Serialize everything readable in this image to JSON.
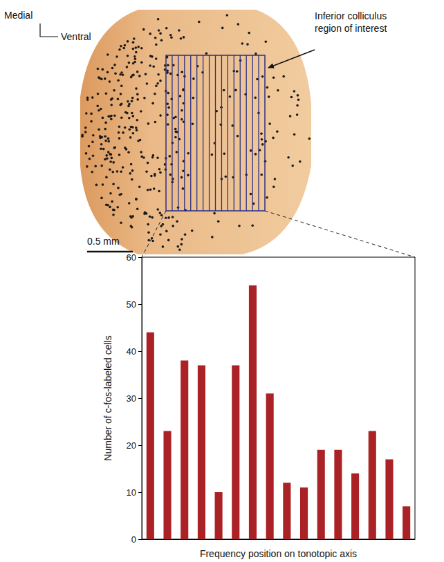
{
  "chart_data": {
    "type": "bar",
    "categories": [
      null,
      null,
      null,
      null,
      null,
      null,
      null,
      null,
      null,
      null,
      null,
      null,
      null,
      null,
      null,
      null
    ],
    "values": [
      44,
      23,
      38,
      37,
      10,
      37,
      54,
      31,
      12,
      11,
      19,
      19,
      14,
      23,
      17,
      7
    ],
    "color": "#aa2226",
    "xlabel": "Frequency position on tonotopic axis",
    "ylabel": "Number of c-fos-labeled cells",
    "ylim": [
      0,
      60
    ],
    "yticks": [
      0,
      10,
      20,
      30,
      40,
      50,
      60
    ],
    "grid": false
  },
  "image": {
    "orientation_labels": [
      "Medial",
      "Ventral"
    ],
    "annotation": "Inferior colliculus region of interest",
    "scale_bar": "0.5 mm"
  }
}
